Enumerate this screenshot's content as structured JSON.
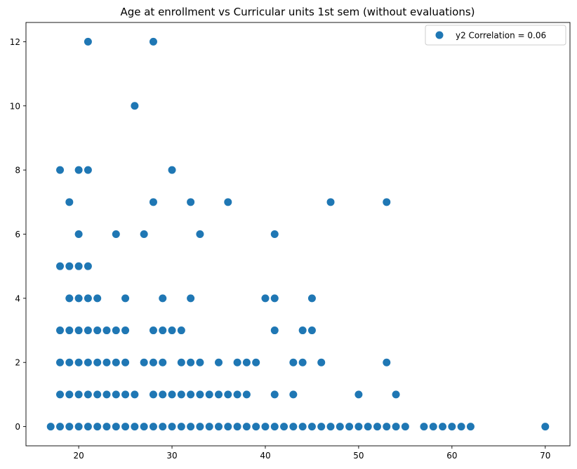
{
  "chart_data": {
    "type": "scatter",
    "title": "Age at enrollment vs Curricular units 1st sem (without evaluations)",
    "xlabel": "",
    "ylabel": "",
    "xlim": [
      14.35,
      72.65
    ],
    "ylim": [
      -0.6,
      12.6
    ],
    "x_ticks": [
      20,
      30,
      40,
      50,
      60,
      70
    ],
    "y_ticks": [
      0,
      2,
      4,
      6,
      8,
      10,
      12
    ],
    "grid": false,
    "legend": "top-right",
    "marker_color": "#1f77b4",
    "series": [
      {
        "name": "y2 Correlation = 0.06",
        "points": [
          [
            17,
            0
          ],
          [
            18,
            0
          ],
          [
            19,
            0
          ],
          [
            20,
            0
          ],
          [
            21,
            0
          ],
          [
            22,
            0
          ],
          [
            23,
            0
          ],
          [
            24,
            0
          ],
          [
            25,
            0
          ],
          [
            26,
            0
          ],
          [
            27,
            0
          ],
          [
            28,
            0
          ],
          [
            29,
            0
          ],
          [
            30,
            0
          ],
          [
            31,
            0
          ],
          [
            32,
            0
          ],
          [
            33,
            0
          ],
          [
            34,
            0
          ],
          [
            35,
            0
          ],
          [
            36,
            0
          ],
          [
            37,
            0
          ],
          [
            38,
            0
          ],
          [
            39,
            0
          ],
          [
            40,
            0
          ],
          [
            41,
            0
          ],
          [
            42,
            0
          ],
          [
            43,
            0
          ],
          [
            44,
            0
          ],
          [
            45,
            0
          ],
          [
            46,
            0
          ],
          [
            47,
            0
          ],
          [
            48,
            0
          ],
          [
            49,
            0
          ],
          [
            50,
            0
          ],
          [
            51,
            0
          ],
          [
            52,
            0
          ],
          [
            53,
            0
          ],
          [
            54,
            0
          ],
          [
            55,
            0
          ],
          [
            57,
            0
          ],
          [
            58,
            0
          ],
          [
            59,
            0
          ],
          [
            60,
            0
          ],
          [
            61,
            0
          ],
          [
            62,
            0
          ],
          [
            70,
            0
          ],
          [
            18,
            1
          ],
          [
            19,
            1
          ],
          [
            20,
            1
          ],
          [
            21,
            1
          ],
          [
            22,
            1
          ],
          [
            23,
            1
          ],
          [
            24,
            1
          ],
          [
            25,
            1
          ],
          [
            26,
            1
          ],
          [
            28,
            1
          ],
          [
            29,
            1
          ],
          [
            30,
            1
          ],
          [
            31,
            1
          ],
          [
            32,
            1
          ],
          [
            33,
            1
          ],
          [
            34,
            1
          ],
          [
            35,
            1
          ],
          [
            36,
            1
          ],
          [
            37,
            1
          ],
          [
            38,
            1
          ],
          [
            41,
            1
          ],
          [
            43,
            1
          ],
          [
            50,
            1
          ],
          [
            54,
            1
          ],
          [
            18,
            2
          ],
          [
            19,
            2
          ],
          [
            20,
            2
          ],
          [
            21,
            2
          ],
          [
            22,
            2
          ],
          [
            23,
            2
          ],
          [
            24,
            2
          ],
          [
            25,
            2
          ],
          [
            27,
            2
          ],
          [
            28,
            2
          ],
          [
            29,
            2
          ],
          [
            31,
            2
          ],
          [
            32,
            2
          ],
          [
            33,
            2
          ],
          [
            35,
            2
          ],
          [
            37,
            2
          ],
          [
            38,
            2
          ],
          [
            39,
            2
          ],
          [
            43,
            2
          ],
          [
            44,
            2
          ],
          [
            46,
            2
          ],
          [
            53,
            2
          ],
          [
            18,
            3
          ],
          [
            19,
            3
          ],
          [
            20,
            3
          ],
          [
            21,
            3
          ],
          [
            22,
            3
          ],
          [
            23,
            3
          ],
          [
            24,
            3
          ],
          [
            25,
            3
          ],
          [
            28,
            3
          ],
          [
            29,
            3
          ],
          [
            30,
            3
          ],
          [
            31,
            3
          ],
          [
            41,
            3
          ],
          [
            44,
            3
          ],
          [
            45,
            3
          ],
          [
            19,
            4
          ],
          [
            20,
            4
          ],
          [
            21,
            4
          ],
          [
            22,
            4
          ],
          [
            25,
            4
          ],
          [
            29,
            4
          ],
          [
            32,
            4
          ],
          [
            40,
            4
          ],
          [
            41,
            4
          ],
          [
            45,
            4
          ],
          [
            18,
            5
          ],
          [
            19,
            5
          ],
          [
            20,
            5
          ],
          [
            21,
            5
          ],
          [
            20,
            6
          ],
          [
            24,
            6
          ],
          [
            27,
            6
          ],
          [
            33,
            6
          ],
          [
            41,
            6
          ],
          [
            19,
            7
          ],
          [
            28,
            7
          ],
          [
            32,
            7
          ],
          [
            36,
            7
          ],
          [
            47,
            7
          ],
          [
            53,
            7
          ],
          [
            18,
            8
          ],
          [
            20,
            8
          ],
          [
            21,
            8
          ],
          [
            30,
            8
          ],
          [
            26,
            10
          ],
          [
            21,
            12
          ],
          [
            28,
            12
          ]
        ]
      }
    ]
  }
}
